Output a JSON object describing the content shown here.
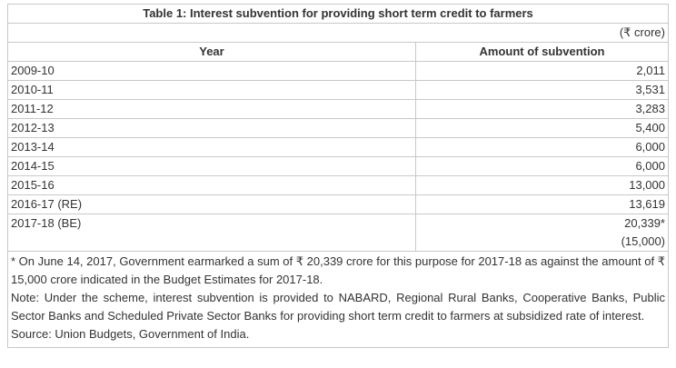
{
  "table": {
    "title": "Table 1: Interest subvention for providing short term credit to farmers",
    "unit": "(₹ crore)",
    "headers": [
      "Year",
      "Amount of subvention"
    ],
    "rows": [
      {
        "year": "2009-10",
        "amount": "2,011"
      },
      {
        "year": "2010-11",
        "amount": "3,531"
      },
      {
        "year": "2011-12",
        "amount": "3,283"
      },
      {
        "year": "2012-13",
        "amount": "5,400"
      },
      {
        "year": "2013-14",
        "amount": "6,000"
      },
      {
        "year": "2014-15",
        "amount": "6,000"
      },
      {
        "year": "2015-16",
        "amount": "13,000"
      },
      {
        "year": "2016-17 (RE)",
        "amount": "13,619"
      },
      {
        "year": "2017-18 (BE)",
        "amount": "20,339*",
        "budget_estimate": "(15,000)"
      }
    ],
    "notes": [
      "* On June 14, 2017, Government earmarked a sum of ₹ 20,339 crore for this purpose for 2017-18 as against the amount of ₹ 15,000 crore indicated in the Budget Estimates for 2017-18.",
      "Note: Under the scheme, interest subvention is provided to NABARD, Regional Rural Banks, Cooperative Banks, Public Sector Banks and Scheduled Private Sector Banks for providing short term credit to farmers at subsidized rate of interest.",
      "Source: Union Budgets, Government of India."
    ]
  }
}
